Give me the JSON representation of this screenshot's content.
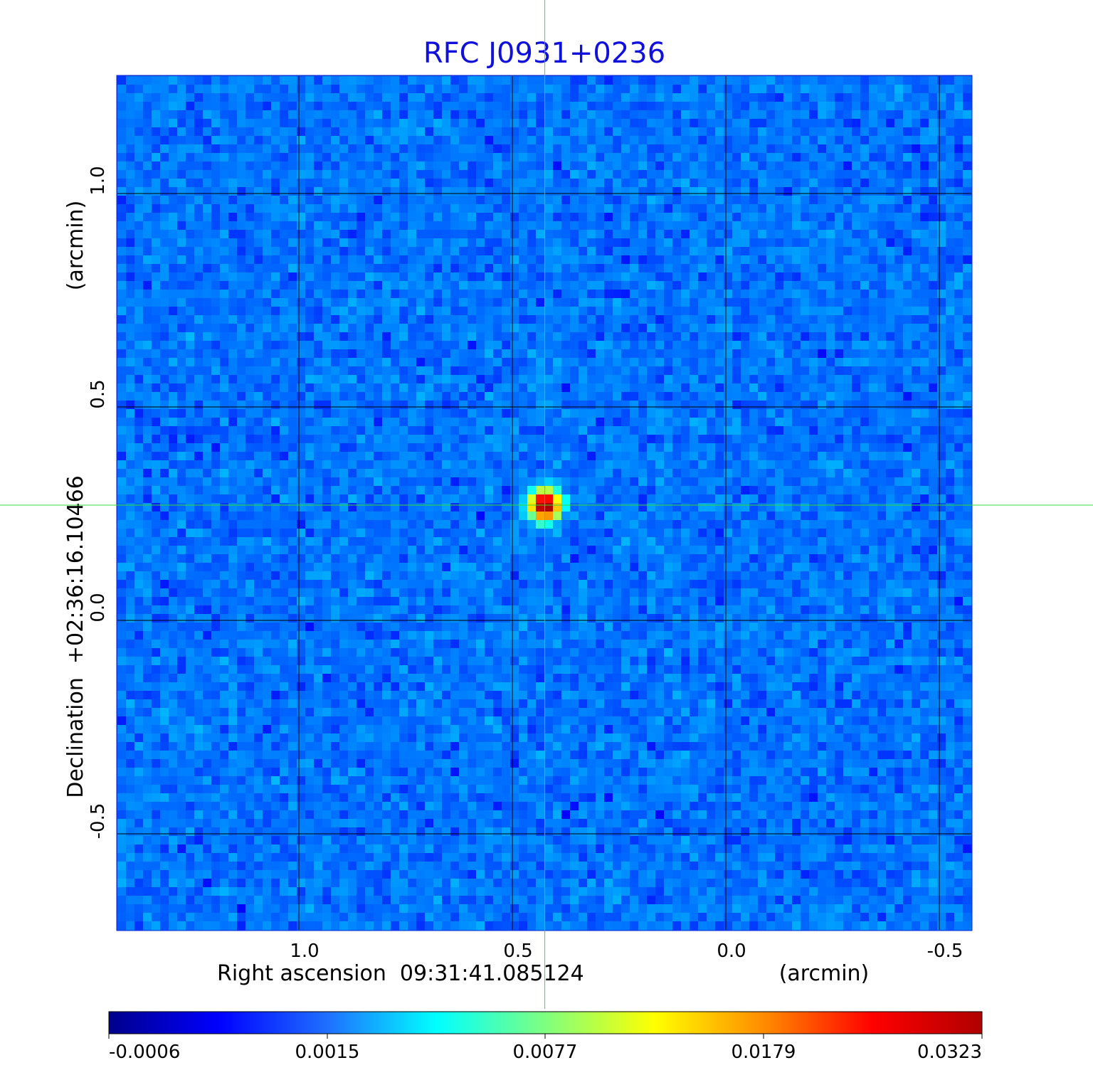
{
  "chart_data": {
    "type": "heatmap",
    "title": "RFC J0931+0236",
    "title_color": "#1010dd",
    "xlabel": "Right ascension  09:31:41.085124",
    "xunit": "(arcmin)",
    "ylabel": "Declination  +02:36:16.10466",
    "yunit": "(arcmin)",
    "x_ticks": [
      1.0,
      0.5,
      0.0,
      -0.5
    ],
    "x_tick_labels": [
      "1.0",
      "0.5",
      "0.0",
      "-0.5"
    ],
    "y_ticks": [
      1.0,
      0.5,
      0.0,
      -0.5
    ],
    "y_tick_labels": [
      "1.0",
      "0.5",
      "0.0",
      "-0.5"
    ],
    "xlim": [
      1.425,
      -0.575
    ],
    "ylim": [
      -0.725,
      1.275
    ],
    "x_reversed": true,
    "grid": true,
    "grid_color": "#000000",
    "crosshair_color": "#33dd33",
    "source": {
      "x": 0.424,
      "y": 0.27,
      "peak": 0.0323
    },
    "background_level": 0.0005,
    "colormap": "jet",
    "colorbar": {
      "min": -0.0006,
      "max": 0.0323,
      "tick_labels": [
        "-0.0006",
        "0.0015",
        "0.0077",
        "0.0179",
        "0.0323"
      ],
      "colors": [
        "#00008b",
        "#0000ff",
        "#1f6fff",
        "#00ffff",
        "#7fff7f",
        "#ffff00",
        "#ff8c00",
        "#ff0000",
        "#b00000"
      ]
    }
  }
}
